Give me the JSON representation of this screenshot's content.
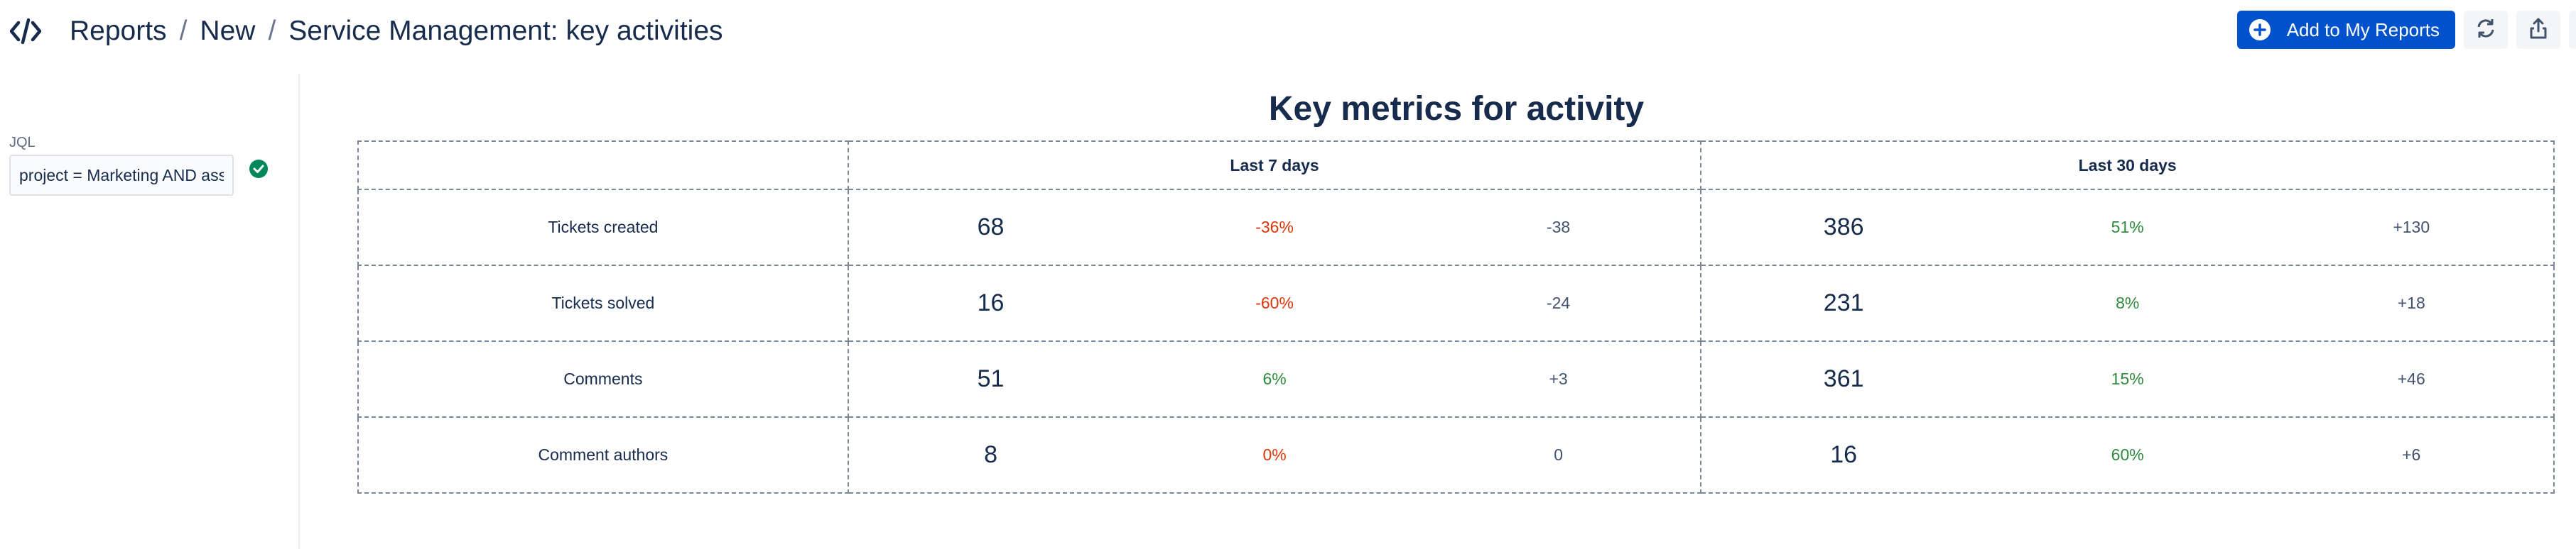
{
  "header": {
    "app_icon": "code-icon",
    "breadcrumb": [
      "Reports",
      "New",
      "Service Management: key activities"
    ],
    "separator": "/",
    "add_button_label": "Add to My Reports",
    "refresh_icon": "refresh-icon",
    "share_icon": "share-icon"
  },
  "sidebar": {
    "jql_label": "JQL",
    "jql_value": "project = Marketing AND assignee = currentUser()",
    "valid_icon": "check-circle-icon"
  },
  "report": {
    "title": "Key metrics for activity",
    "periods": [
      "Last 7 days",
      "Last 30 days"
    ],
    "rows": [
      {
        "label": "Tickets created",
        "week": {
          "value": "68",
          "pct": "-36%",
          "delta": "-38"
        },
        "month": {
          "value": "386",
          "pct": "51%",
          "delta": "+130"
        }
      },
      {
        "label": "Tickets solved",
        "week": {
          "value": "16",
          "pct": "-60%",
          "delta": "-24"
        },
        "month": {
          "value": "231",
          "pct": "8%",
          "delta": "+18"
        }
      },
      {
        "label": "Comments",
        "week": {
          "value": "51",
          "pct": "6%",
          "delta": "+3"
        },
        "month": {
          "value": "361",
          "pct": "15%",
          "delta": "+46"
        }
      },
      {
        "label": "Comment authors",
        "week": {
          "value": "8",
          "pct": "0%",
          "delta": "0"
        },
        "month": {
          "value": "16",
          "pct": "60%",
          "delta": "+6"
        }
      }
    ]
  },
  "colors": {
    "primary": "#0052cc",
    "negative": "#de350b",
    "positive": "#2f8a3c",
    "valid": "#00875a"
  }
}
